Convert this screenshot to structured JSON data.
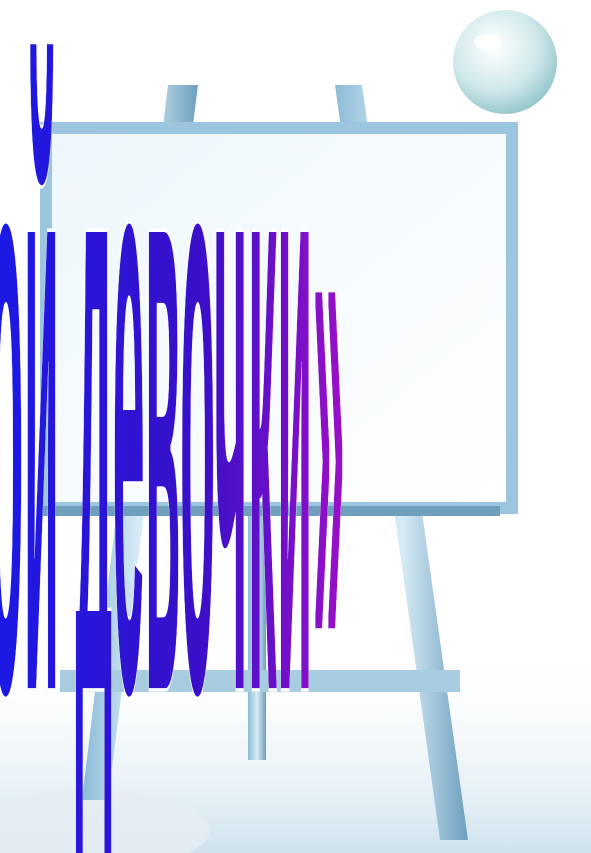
{
  "slide": {
    "title": "ой девочки»"
  }
}
